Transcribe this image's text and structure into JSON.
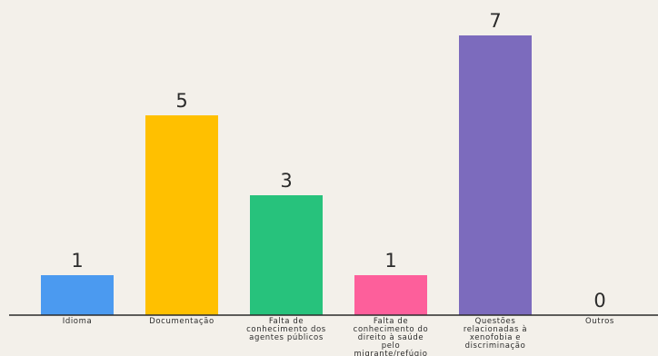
{
  "chart_data": {
    "type": "bar",
    "categories": [
      [
        "Idioma"
      ],
      [
        "Documentação"
      ],
      [
        "Falta de",
        "conhecimento dos",
        "agentes públicos"
      ],
      [
        "Falta de",
        "conhecimento do",
        "direito à saúde",
        "pelo",
        "migrante/refúgio"
      ],
      [
        "Questões",
        "relacionadas à",
        "xenofobia e",
        "discriminação"
      ],
      [
        "Outros"
      ]
    ],
    "values": [
      1,
      5,
      3,
      1,
      7,
      0
    ],
    "colors": [
      "#4b9af0",
      "#ffc000",
      "#27c27c",
      "#fd5f9b",
      "#7c6bbd",
      "#7c6bbd"
    ],
    "ylim": [
      0,
      7
    ],
    "data_labels": true,
    "grid": false,
    "title": "",
    "xlabel": "",
    "ylabel": ""
  }
}
